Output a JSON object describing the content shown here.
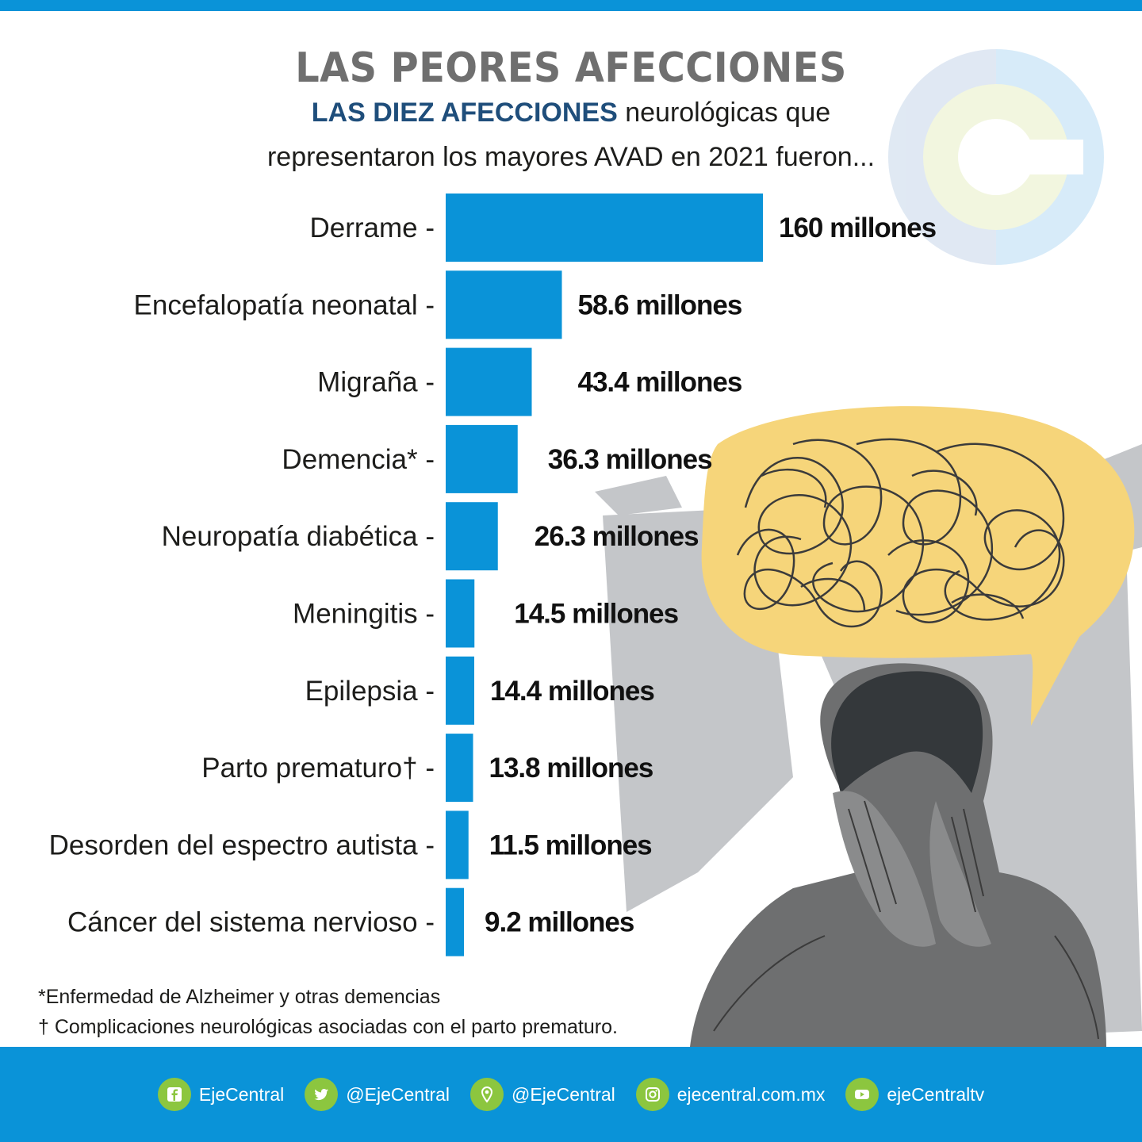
{
  "header": {
    "title": "LAS PEORES AFECCIONES",
    "subtitle_strong": "LAS DIEZ AFECCIONES",
    "subtitle_line1_rest": " neurológicas que",
    "subtitle_line2": "representaron los mayores AVAD en 2021 fueron..."
  },
  "chart_data": {
    "type": "bar",
    "orientation": "horizontal",
    "categories": [
      "Derrame",
      "Encefalopatía neonatal",
      "Migraña",
      "Demencia*",
      "Neuropatía diabética",
      "Meningitis",
      "Epilepsia",
      "Parto prematuro†",
      "Desorden del espectro autista",
      "Cáncer del sistema nervioso"
    ],
    "values": [
      160,
      58.6,
      43.4,
      36.3,
      26.3,
      14.5,
      14.4,
      13.8,
      11.5,
      9.2
    ],
    "value_labels": [
      "160 millones",
      "58.6 millones",
      "43.4 millones",
      "36.3 millones",
      "26.3 millones",
      "14.5 millones",
      "14.4 millones",
      "13.8 millones",
      "11.5 millones",
      "9.2 millones"
    ],
    "category_suffix": " -",
    "bar_color": "#0a93d8"
  },
  "footnotes": {
    "note1": "*Enfermedad de Alzheimer y otras demencias",
    "note2": "† Complicaciones neurológicas asociadas con el parto prematuro."
  },
  "footer": {
    "items": [
      {
        "icon": "facebook-icon",
        "label": "EjeCentral"
      },
      {
        "icon": "twitter-icon",
        "label": "@EjeCentral"
      },
      {
        "icon": "location-pin-icon",
        "label": "@EjeCentral"
      },
      {
        "icon": "instagram-icon",
        "label": "ejecentral.com.mx"
      },
      {
        "icon": "youtube-icon",
        "label": "ejeCentraltv"
      }
    ],
    "accent_color": "#8cc63f"
  }
}
